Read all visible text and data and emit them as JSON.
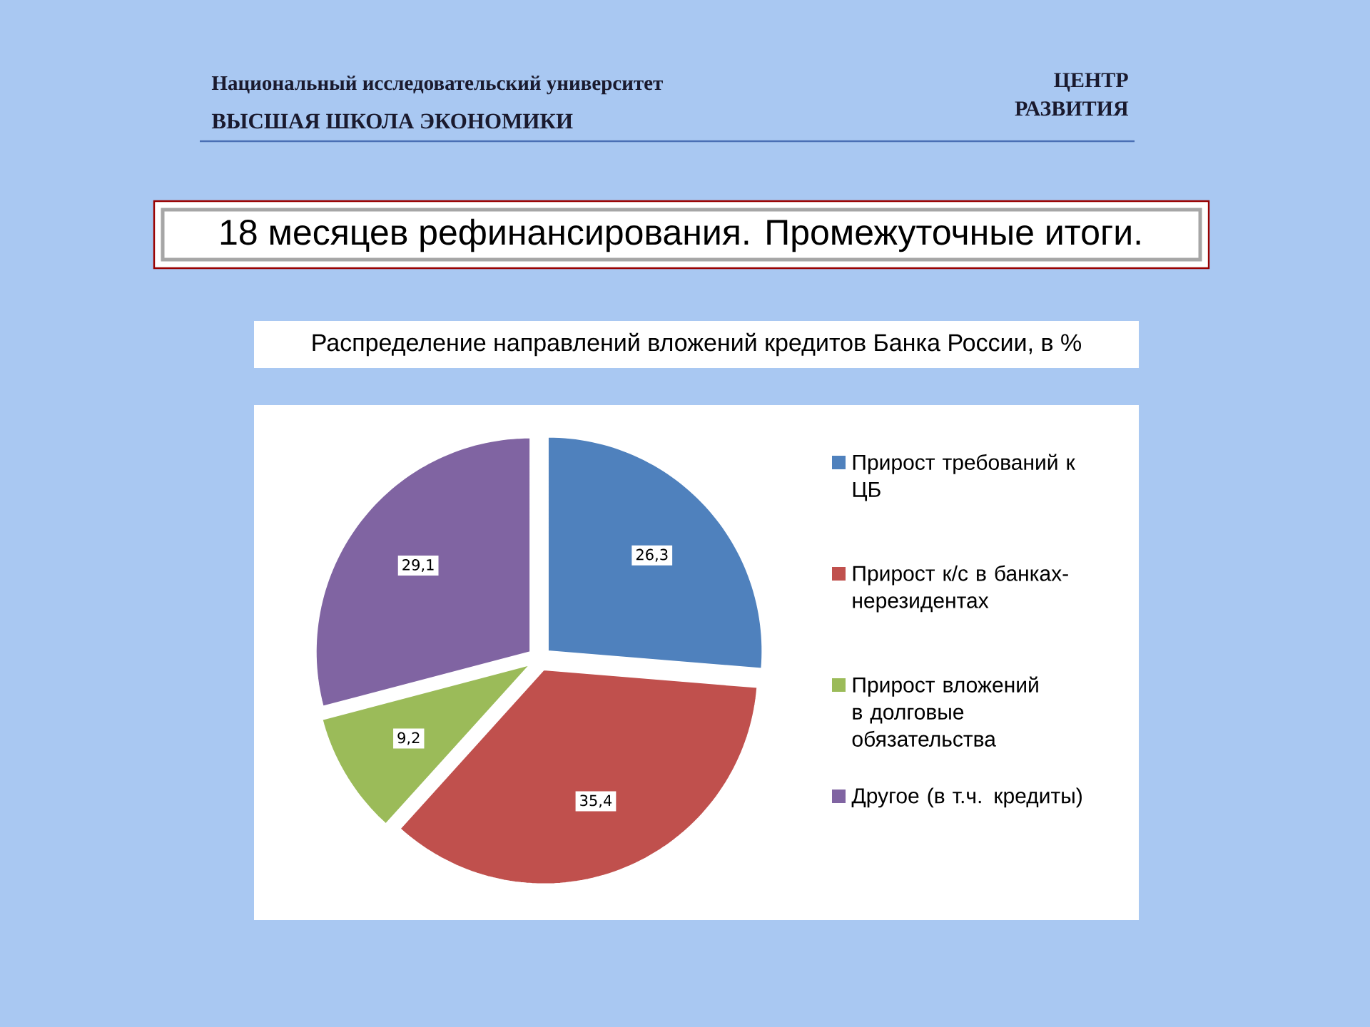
{
  "chart_data": {
    "type": "pie",
    "title": "18 месяцев рефинансирования. Промежуточные итоги.",
    "subtitle": "Распределение направлений вложений кредитов Банка России, в %",
    "categories": [
      "Прирост требований к ЦБ",
      "Прирост к/с в банках-нерезидентах",
      "Прирост вложений в долговые обязательства",
      "Другое (в т.ч. кредиты)"
    ],
    "values": [
      26.3,
      35.4,
      9.2,
      29.1
    ],
    "value_labels": [
      "26,3",
      "35,4",
      "9,2",
      "29,1"
    ],
    "colors": [
      "#4f81bd",
      "#c0504d",
      "#9bbb59",
      "#8064a2"
    ],
    "legend": "right",
    "annotations": [
      "Национальный исследовательский университет",
      "ВЫСШАЯ ШКОЛА ЭКОНОМИКИ",
      "ЦЕНТР РАЗВИТИЯ"
    ]
  }
}
